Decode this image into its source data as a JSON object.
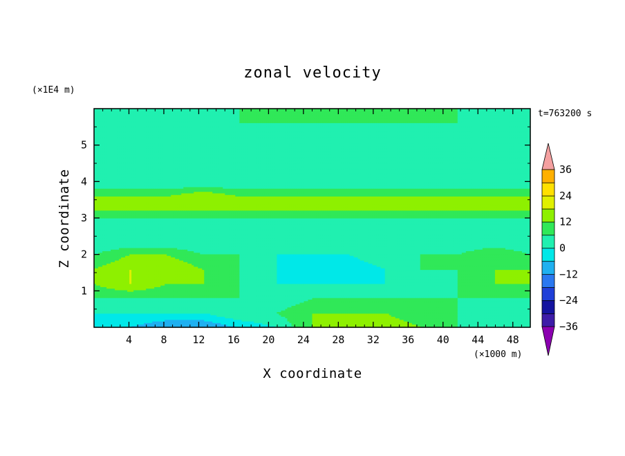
{
  "chart_data": {
    "type": "heatmap",
    "title": "zonal velocity",
    "xlabel": "X coordinate",
    "ylabel": "Z coordinate",
    "x_unit": "(×1000 m)",
    "y_unit": "(×1E4 m)",
    "time_label": "t=763200 s",
    "xlim": [
      0,
      50
    ],
    "ylim": [
      0,
      6
    ],
    "x_ticks": [
      "4",
      "8",
      "12",
      "16",
      "20",
      "24",
      "28",
      "32",
      "36",
      "40",
      "44",
      "48"
    ],
    "y_ticks": [
      "1",
      "2",
      "3",
      "4",
      "5"
    ],
    "colorbar": {
      "min": -42,
      "max": 42,
      "step": 6,
      "tick_labels": [
        "36",
        "24",
        "12",
        "0",
        "−12",
        "−24",
        "−36"
      ],
      "colors": [
        "#8b00b0",
        "#3d1ca8",
        "#1414a0",
        "#1f3fd8",
        "#2a78f0",
        "#1fb0f0",
        "#00e8e8",
        "#20f0b0",
        "#30e858",
        "#8ef000",
        "#e0f000",
        "#ffe000",
        "#ffb000",
        "#ff7a00",
        "#ff4a00",
        "#ff1010",
        "#f4a0a0"
      ]
    },
    "grid": [
      [
        -12,
        -12,
        -18,
        -18,
        -12,
        -6,
        6,
        12,
        12,
        6,
        0,
        -6,
        -6
      ],
      [
        -6,
        -6,
        -6,
        -6,
        0,
        0,
        6,
        6,
        6,
        0,
        0,
        -6,
        -6
      ],
      [
        0,
        0,
        0,
        0,
        0,
        -6,
        0,
        0,
        0,
        0,
        0,
        0,
        0
      ],
      [
        6,
        12,
        6,
        6,
        0,
        -6,
        -6,
        -6,
        -6,
        -6,
        0,
        6,
        6
      ],
      [
        6,
        12,
        12,
        6,
        0,
        -6,
        -12,
        -12,
        -6,
        0,
        0,
        6,
        6
      ],
      [
        0,
        6,
        6,
        0,
        0,
        -6,
        -6,
        -6,
        0,
        0,
        0,
        6,
        0
      ],
      [
        -6,
        -6,
        -6,
        -6,
        -6,
        -6,
        -6,
        -6,
        -6,
        -6,
        -6,
        -6,
        -6
      ],
      [
        -6,
        -6,
        -6,
        -6,
        -6,
        -6,
        -6,
        -6,
        -6,
        -6,
        -6,
        -6,
        -6
      ],
      [
        6,
        6,
        6,
        6,
        6,
        6,
        6,
        6,
        6,
        6,
        6,
        6,
        6
      ],
      [
        6,
        6,
        6,
        12,
        6,
        6,
        6,
        6,
        6,
        6,
        6,
        6,
        6
      ],
      [
        -6,
        -6,
        -6,
        -6,
        -6,
        -6,
        -6,
        -6,
        -6,
        -6,
        -6,
        -6,
        -6
      ],
      [
        -6,
        -6,
        -6,
        -6,
        -6,
        -6,
        -6,
        -6,
        -6,
        -6,
        -6,
        -6,
        -6
      ],
      [
        0,
        0,
        0,
        0,
        0,
        0,
        0,
        0,
        0,
        0,
        0,
        0,
        0
      ],
      [
        -6,
        -6,
        -6,
        -6,
        -6,
        -6,
        -6,
        -6,
        -6,
        -6,
        -6,
        -6,
        -6
      ],
      [
        -6,
        -6,
        -6,
        -6,
        0,
        0,
        0,
        0,
        0,
        0,
        0,
        -6,
        -6
      ],
      [
        -6,
        -6,
        -6,
        -6,
        0,
        0,
        0,
        0,
        0,
        0,
        0,
        0,
        0
      ]
    ]
  }
}
